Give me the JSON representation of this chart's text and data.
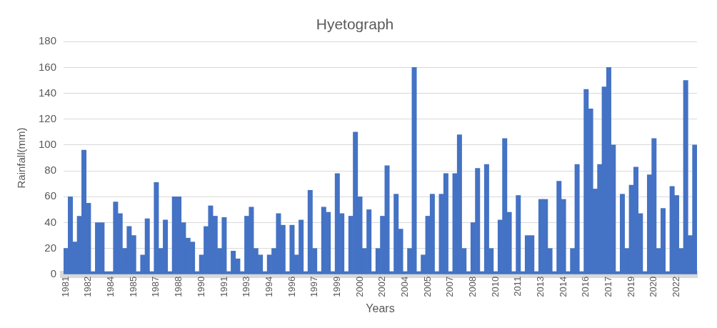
{
  "chart_data": {
    "type": "bar",
    "title": "Hyetograph",
    "xlabel": "Years",
    "ylabel": "Rainfall(mm)",
    "color": "#4472c4",
    "ylim": [
      0,
      180
    ],
    "yticks": [
      0,
      20,
      40,
      60,
      80,
      100,
      120,
      140,
      160,
      180
    ],
    "grid": "y",
    "legend": false,
    "categories": [
      "1981",
      null,
      null,
      null,
      null,
      "1982",
      null,
      null,
      null,
      null,
      "1984",
      null,
      null,
      null,
      null,
      "1985",
      null,
      null,
      null,
      null,
      "1987",
      null,
      null,
      null,
      null,
      "1988",
      null,
      null,
      null,
      null,
      "1990",
      null,
      null,
      null,
      null,
      "1991",
      null,
      null,
      null,
      null,
      "1993",
      null,
      null,
      null,
      null,
      "1994",
      null,
      null,
      null,
      null,
      "1996",
      null,
      null,
      null,
      null,
      "1997",
      null,
      null,
      null,
      null,
      "1999",
      null,
      null,
      null,
      null,
      "2000",
      null,
      null,
      null,
      null,
      "2002",
      null,
      null,
      null,
      null,
      "2004",
      null,
      null,
      null,
      null,
      "2005",
      null,
      null,
      null,
      null,
      "2007",
      null,
      null,
      null,
      null,
      "2008",
      null,
      null,
      null,
      null,
      "2010",
      null,
      null,
      null,
      null,
      "2011",
      null,
      null,
      null,
      null,
      "2013",
      null,
      null,
      null,
      null,
      "2014",
      null,
      null,
      null,
      null,
      "2016",
      null,
      null,
      null,
      null,
      "2017",
      null,
      null,
      null,
      null,
      "2019",
      null,
      null,
      null,
      null,
      "2020",
      null,
      null,
      null,
      null,
      "2022",
      null,
      null,
      null,
      null
    ],
    "values": [
      20,
      60,
      25,
      45,
      96,
      55,
      2,
      40,
      40,
      2,
      2,
      56,
      47,
      20,
      37,
      30,
      2,
      15,
      43,
      2,
      71,
      20,
      42,
      2,
      60,
      60,
      40,
      28,
      25,
      2,
      15,
      37,
      53,
      45,
      20,
      44,
      2,
      18,
      12,
      2,
      45,
      52,
      20,
      15,
      2,
      15,
      20,
      47,
      38,
      2,
      38,
      15,
      42,
      2,
      65,
      20,
      2,
      52,
      48,
      2,
      78,
      47,
      2,
      45,
      110,
      60,
      20,
      50,
      2,
      20,
      45,
      84,
      2,
      62,
      35,
      2,
      20,
      160,
      2,
      15,
      45,
      62,
      2,
      62,
      78,
      2,
      78,
      108,
      20,
      2,
      40,
      82,
      2,
      85,
      20,
      2,
      42,
      105,
      48,
      2,
      61,
      2,
      30,
      30,
      2,
      58,
      58,
      20,
      2,
      72,
      58,
      2,
      20,
      85,
      2,
      143,
      128,
      66,
      85,
      145,
      160,
      100,
      2,
      62,
      20,
      69,
      83,
      47,
      2,
      77,
      105,
      20,
      51,
      2,
      68,
      61,
      20,
      150,
      30,
      100
    ]
  }
}
